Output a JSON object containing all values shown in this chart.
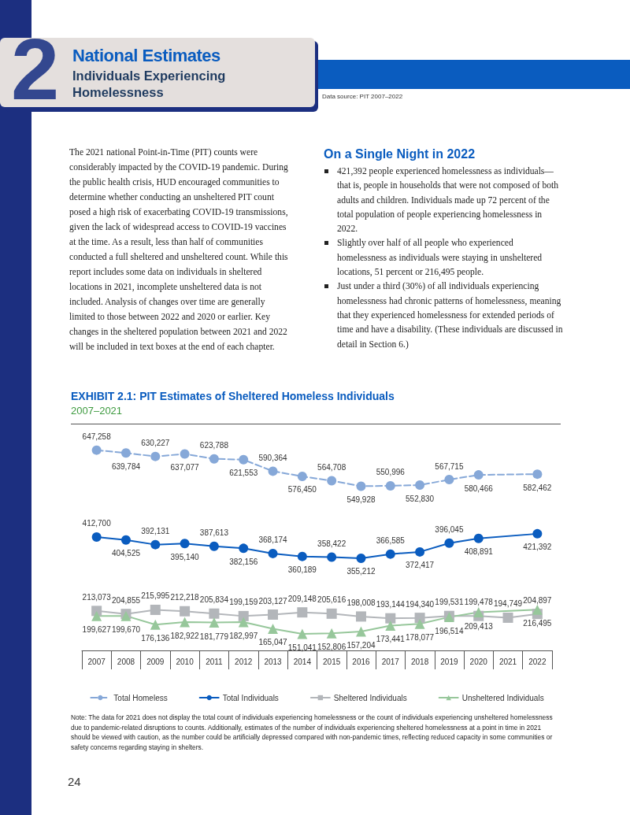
{
  "chart_data": {
    "type": "line",
    "title": "EXHIBIT 2.1: PIT Estimates of Sheltered Homeless Individuals",
    "subtitle": "2007–2021",
    "categories": [
      "2007",
      "2008",
      "2009",
      "2010",
      "2011",
      "2012",
      "2013",
      "2014",
      "2015",
      "2016",
      "2017",
      "2018",
      "2019",
      "2020",
      "2021",
      "2022"
    ],
    "series": [
      {
        "name": "Total Homeless",
        "color": "#86a8d8",
        "marker": "circle",
        "line_style": "dashed",
        "values": [
          647258,
          639784,
          630227,
          637077,
          623788,
          621553,
          590364,
          576450,
          564708,
          549928,
          550996,
          552830,
          567715,
          580466,
          null,
          582462
        ],
        "value_labels": [
          "647,258",
          "639,784",
          "630,227",
          "637,077",
          "623,788",
          "621,553",
          "590,364",
          "576,450",
          "564,708",
          "549,928",
          "550,996",
          "552,830",
          "567,715",
          "580,466",
          null,
          "582,462"
        ]
      },
      {
        "name": "Total Individuals",
        "color": "#0a5cbf",
        "marker": "circle",
        "line_style": "solid",
        "values": [
          412700,
          404525,
          392131,
          395140,
          387613,
          382156,
          368174,
          360189,
          358422,
          355212,
          366585,
          372417,
          396045,
          408891,
          null,
          421392
        ],
        "value_labels": [
          "412,700",
          "404,525",
          "392,131",
          "395,140",
          "387,613",
          "382,156",
          "368,174",
          "360,189",
          "358,422",
          "355,212",
          "366,585",
          "372,417",
          "396,045",
          "408,891",
          null,
          "421,392"
        ]
      },
      {
        "name": "Sheltered Individuals",
        "color": "#b3b6ba",
        "marker": "square",
        "line_style": "solid",
        "values": [
          213073,
          204855,
          215995,
          212218,
          205834,
          199159,
          203127,
          209148,
          205616,
          198008,
          193144,
          194340,
          199531,
          199478,
          194749,
          204897
        ],
        "value_labels": [
          "213,073",
          "204,855",
          "215,995",
          "212,218",
          "205,834",
          "199,159",
          "203,127",
          "209,148",
          "205,616",
          "198,008",
          "193,144",
          "194,340",
          "199,531",
          "199,478",
          "194,749",
          "204,897"
        ]
      },
      {
        "name": "Unsheltered Individuals",
        "color": "#97c79b",
        "marker": "triangle",
        "line_style": "solid",
        "values": [
          199627,
          199670,
          176136,
          182922,
          181779,
          182997,
          165047,
          151041,
          152806,
          157204,
          173441,
          178077,
          196514,
          209413,
          null,
          216495
        ],
        "value_labels": [
          "199,627",
          "199,670",
          "176,136",
          "182,922",
          "181,779",
          "182,997",
          "165,047",
          "151,041",
          "152,806",
          "157,204",
          "173,441",
          "178,077",
          "196,514",
          "209,413",
          null,
          "216,495"
        ]
      }
    ],
    "tick_labels": "x",
    "grid": false,
    "legend": "bottom",
    "annotations": [
      "2",
      "National Estimates",
      "Individuals Experiencing Homelessness",
      "Data source: PIT 2007–2022",
      "The 2021 national Point-in-Time (PIT) counts were considerably impacted by the COVID-19 pandemic. During the public health crisis, HUD encouraged communities to determine whether conducting an unsheltered PIT count posed a high risk of exacerbating COVID-19 transmissions, given the lack of widespread access to COVID-19 vaccines at the time. As a result, less than half of communities conducted a full sheltered and unsheltered count. While this report includes some data on individuals in sheltered locations in 2021, incomplete unsheltered data is not included. Analysis of changes over time are generally limited to those between 2022 and 2020 or earlier. Key changes in the sheltered population between 2021 and 2022 will be included in text boxes at the end of each chapter.",
      "On a Single Night in 2022",
      "421,392 people experienced homelessness as individuals—that is, people in households that were not composed of both adults and children. Individuals made up 72 percent of the total population of people experiencing homelessness in 2022.",
      "Slightly over half of all people who experienced homelessness as individuals were staying in unsheltered locations, 51 percent or 216,495 people.",
      "Just under a third (30%) of all individuals experiencing homelessness had chronic patterns of homelessness, meaning that they experienced homelessness for extended periods of time and have a disability. (These individuals are discussed in detail in Section 6.)",
      "Note: The data for 2021 does not display the total count of individuals experiencing homelessness or the count of individuals experiencing unsheltered homelessness due to pandemic-related disruptions to counts. Additionally, estimates of the number of individuals experiencing sheltered homelessness at a point in time in 2021 should be viewed with caution, as the number could be artificially depressed compared with non-pandemic times, reflecting reduced capacity in some communities or safety concerns regarding staying in shelters.",
      "24"
    ]
  }
}
